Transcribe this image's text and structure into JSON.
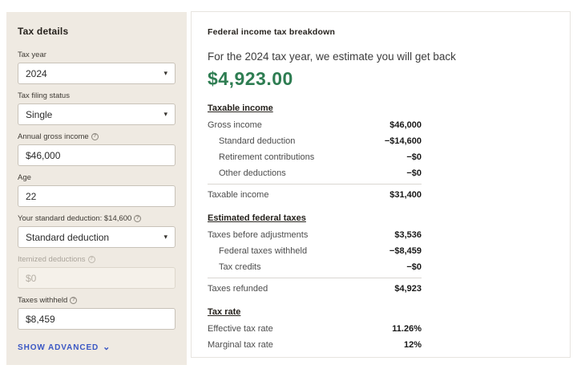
{
  "colors": {
    "sidebar_bg": "#EFEAE2",
    "accent_green": "#2E7D52",
    "link_blue": "#3a57c4",
    "panel_border": "#e7e4df"
  },
  "icons": {
    "dropdown_caret": "▾",
    "chevron_down": "⌄",
    "info": "?"
  },
  "sidebar": {
    "title": "Tax details",
    "fields": [
      {
        "label": "Tax year",
        "value": "2024",
        "type": "select"
      },
      {
        "label": "Tax filing status",
        "value": "Single",
        "type": "select"
      },
      {
        "label": "Annual gross income",
        "value": "$46,000",
        "type": "input",
        "has_info": true
      },
      {
        "label": "Age",
        "value": "22",
        "type": "input"
      },
      {
        "label": "Your standard deduction: $14,600",
        "value": "Standard deduction",
        "type": "select",
        "has_info": true
      },
      {
        "label": "Itemized deductions",
        "value": "$0",
        "type": "input",
        "has_info": true,
        "disabled": true
      },
      {
        "label": "Taxes withheld",
        "value": "$8,459",
        "type": "input",
        "has_info": true
      }
    ],
    "show_advanced_label": "SHOW ADVANCED"
  },
  "panel": {
    "title": "Federal income tax breakdown",
    "subtitle": "For the 2024 tax year, we estimate you will get back",
    "refund_amount": "$4,923.00",
    "sections": [
      {
        "heading": "Taxable income",
        "rows": [
          {
            "label": "Gross income",
            "value": "$46,000"
          },
          {
            "label": "Standard deduction",
            "value": "−$14,600"
          },
          {
            "label": "Retirement contributions",
            "value": "−$0"
          },
          {
            "label": "Other deductions",
            "value": "−$0"
          }
        ],
        "total": {
          "label": "Taxable income",
          "value": "$31,400"
        }
      },
      {
        "heading": "Estimated federal taxes",
        "rows": [
          {
            "label": "Taxes before adjustments",
            "value": "$3,536"
          },
          {
            "label": "Federal taxes withheld",
            "value": "−$8,459"
          },
          {
            "label": "Tax credits",
            "value": "−$0"
          }
        ],
        "total": {
          "label": "Taxes refunded",
          "value": "$4,923"
        }
      },
      {
        "heading": "Tax rate",
        "rows": [
          {
            "label": "Effective tax rate",
            "value": "11.26%"
          },
          {
            "label": "Marginal tax rate",
            "value": "12%"
          }
        ]
      }
    ]
  }
}
